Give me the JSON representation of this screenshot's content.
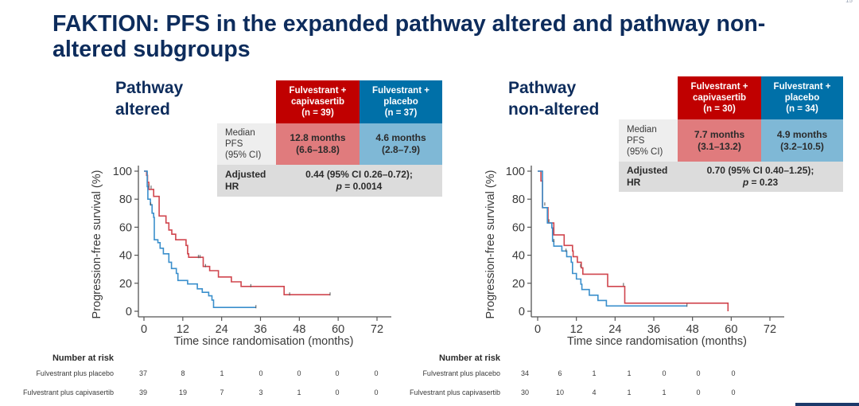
{
  "slide": {
    "title": "FAKTION: PFS in the expanded pathway altered and pathway non-altered subgroups",
    "page_number": "15"
  },
  "colors": {
    "title": "#0d2c5c",
    "capivasertib_header": "#c00000",
    "placebo_header": "#0070a8",
    "capivasertib_value": "#e07b7d",
    "placebo_value": "#7fb8d6",
    "capivasertib_line": "#d0454d",
    "placebo_line": "#3a8fcc"
  },
  "panels": [
    {
      "subtitle_line1": "Pathway",
      "subtitle_line2": "altered",
      "table": {
        "col_capivasertib": {
          "line1": "Fulvestrant +",
          "line2": "capivasertib",
          "line3": "(n = 39)"
        },
        "col_placebo": {
          "line1": "Fulvestrant +",
          "line2": "placebo",
          "line3": "(n = 37)"
        },
        "median_label": {
          "line1": "Median",
          "line2": "PFS",
          "line3": "(95% CI)"
        },
        "median_capivasertib": {
          "line1": "12.8 months",
          "line2": "(6.6–18.8)"
        },
        "median_placebo": {
          "line1": "4.6 months",
          "line2": "(2.8–7.9)"
        },
        "hr_label": {
          "line1": "Adjusted",
          "line2": "HR"
        },
        "hr_value": "0.44 (95% CI 0.26–0.72);",
        "p_label": "p",
        "p_value": " = 0.0014"
      },
      "risk": {
        "title": "Number at risk",
        "rows": [
          {
            "label": "Fulvestrant plus placebo",
            "values": [
              "37",
              "8",
              "1",
              "0",
              "0",
              "0",
              "0"
            ]
          },
          {
            "label": "Fulvestrant plus capivasertib",
            "values": [
              "39",
              "19",
              "7",
              "3",
              "1",
              "0",
              "0"
            ]
          }
        ]
      }
    },
    {
      "subtitle_line1": "Pathway",
      "subtitle_line2": "non-altered",
      "table": {
        "col_capivasertib": {
          "line1": "Fulvestrant +",
          "line2": "capivasertib",
          "line3": "(n = 30)"
        },
        "col_placebo": {
          "line1": "Fulvestrant +",
          "line2": "placebo",
          "line3": "(n = 34)"
        },
        "median_label": {
          "line1": "Median",
          "line2": "PFS",
          "line3": "(95% CI)"
        },
        "median_capivasertib": {
          "line1": "7.7 months",
          "line2": "(3.1–13.2)"
        },
        "median_placebo": {
          "line1": "4.9 months",
          "line2": "(3.2–10.5)"
        },
        "hr_label": {
          "line1": "Adjusted",
          "line2": "HR"
        },
        "hr_value": "0.70 (95% CI 0.40–1.25);",
        "p_label": "p",
        "p_value": " = 0.23"
      },
      "risk": {
        "title": "Number at risk",
        "rows": [
          {
            "label": "Fulvestrant plus placebo",
            "values": [
              "34",
              "6",
              "1",
              "1",
              "0",
              "0",
              "0"
            ]
          },
          {
            "label": "Fulvestrant plus capivasertib",
            "values": [
              "30",
              "10",
              "4",
              "1",
              "1",
              "0",
              "0"
            ]
          }
        ]
      }
    }
  ],
  "chart_data": [
    {
      "type": "line",
      "title": "Pathway altered",
      "xlabel": "Time since randomisation (months)",
      "ylabel": "Progression-free survival (%)",
      "xlim": [
        0,
        72
      ],
      "ylim": [
        0,
        100
      ],
      "xticks": [
        "0",
        "12",
        "24",
        "36",
        "48",
        "60",
        "72"
      ],
      "yticks": [
        "0",
        "20",
        "40",
        "60",
        "80",
        "100"
      ],
      "grid": false,
      "step": true,
      "series": [
        {
          "name": "Fulvestrant plus capivasertib",
          "color": "#d0454d",
          "points": [
            [
              0,
              100
            ],
            [
              0.8,
              97
            ],
            [
              1.1,
              92
            ],
            [
              1.5,
              87
            ],
            [
              3.0,
              82
            ],
            [
              4.7,
              68
            ],
            [
              6.8,
              63
            ],
            [
              7.7,
              58
            ],
            [
              8.6,
              55
            ],
            [
              9.8,
              51
            ],
            [
              13.0,
              47
            ],
            [
              13.5,
              41
            ],
            [
              13.8,
              38.5
            ],
            [
              18.3,
              32
            ],
            [
              20.3,
              29
            ],
            [
              23.0,
              24.5
            ],
            [
              27.0,
              21
            ],
            [
              30.0,
              17.7
            ],
            [
              43.3,
              11.8
            ],
            [
              57.5,
              11.8
            ]
          ],
          "censor": [
            [
              1.5,
              89
            ],
            [
              2.2,
              88
            ],
            [
              16.8,
              38.5
            ],
            [
              17.3,
              38.5
            ],
            [
              19.0,
              32
            ],
            [
              33.0,
              17.7
            ],
            [
              45.0,
              11.8
            ],
            [
              57.5,
              11.8
            ]
          ]
        },
        {
          "name": "Fulvestrant plus placebo",
          "color": "#3a8fcc",
          "points": [
            [
              0,
              100
            ],
            [
              1.0,
              89
            ],
            [
              1.2,
              80
            ],
            [
              2.0,
              76
            ],
            [
              2.5,
              70
            ],
            [
              3.0,
              67
            ],
            [
              3.2,
              51
            ],
            [
              4.3,
              49
            ],
            [
              5.0,
              45
            ],
            [
              6.0,
              41
            ],
            [
              7.7,
              35
            ],
            [
              8.5,
              30.5
            ],
            [
              10.0,
              27
            ],
            [
              10.5,
              22
            ],
            [
              13.5,
              19.5
            ],
            [
              16.5,
              16
            ],
            [
              18.0,
              13.5
            ],
            [
              20.0,
              11
            ],
            [
              21.0,
              8
            ],
            [
              21.5,
              2.7
            ],
            [
              34.6,
              2.7
            ]
          ],
          "censor": [
            [
              2.1,
              76
            ],
            [
              34.6,
              2.7
            ]
          ]
        }
      ]
    },
    {
      "type": "line",
      "title": "Pathway non-altered",
      "xlabel": "Time since randomisation (months)",
      "ylabel": "Progression-free survival (%)",
      "xlim": [
        0,
        72
      ],
      "ylim": [
        0,
        100
      ],
      "xticks": [
        "0",
        "12",
        "24",
        "36",
        "48",
        "60",
        "72"
      ],
      "yticks": [
        "0",
        "20",
        "40",
        "60",
        "80",
        "100"
      ],
      "grid": false,
      "step": true,
      "series": [
        {
          "name": "Fulvestrant plus capivasertib",
          "color": "#d0454d",
          "points": [
            [
              0,
              100
            ],
            [
              1.0,
              93
            ],
            [
              1.5,
              74
            ],
            [
              3.2,
              63
            ],
            [
              5.0,
              54.5
            ],
            [
              8.2,
              47
            ],
            [
              10.8,
              43
            ],
            [
              11.0,
              39
            ],
            [
              12.3,
              35
            ],
            [
              13.5,
              31
            ],
            [
              14.0,
              26.5
            ],
            [
              21.7,
              17.7
            ],
            [
              27.0,
              5.8
            ],
            [
              59.0,
              5.8
            ],
            [
              59.0,
              0
            ]
          ],
          "censor": [
            [
              3.5,
              64
            ],
            [
              13.3,
              32
            ],
            [
              26.6,
              18.5
            ]
          ]
        },
        {
          "name": "Fulvestrant plus placebo",
          "color": "#3a8fcc",
          "points": [
            [
              0,
              100
            ],
            [
              0.5,
              100
            ],
            [
              1.5,
              74
            ],
            [
              3.0,
              63
            ],
            [
              4.4,
              59.5
            ],
            [
              4.6,
              50
            ],
            [
              5.0,
              46.5
            ],
            [
              7.5,
              43
            ],
            [
              9.0,
              39
            ],
            [
              10.4,
              35
            ],
            [
              10.8,
              27
            ],
            [
              12.0,
              23
            ],
            [
              13.4,
              19.3
            ],
            [
              13.7,
              15.5
            ],
            [
              16.0,
              11.5
            ],
            [
              18.7,
              7.7
            ],
            [
              21.3,
              3.8
            ],
            [
              46.3,
              3.8
            ]
          ],
          "censor": [
            [
              2.2,
              76
            ],
            [
              5.0,
              50
            ],
            [
              8.8,
              43
            ],
            [
              46.3,
              3.8
            ]
          ]
        }
      ]
    }
  ]
}
